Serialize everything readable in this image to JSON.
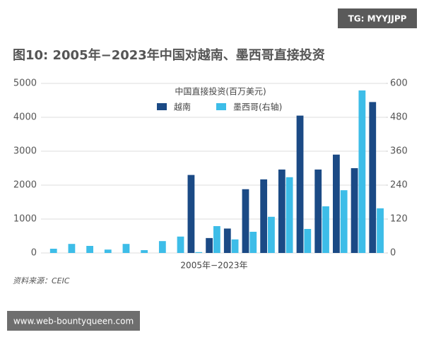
{
  "watermark": "TG: MYYJJPP",
  "footer_url": "www.web-bountyqueen.com",
  "chart_data": {
    "type": "bar",
    "title": "图10: 2005年−2023年中国对越南、墨西哥直接投资",
    "legend_title": "中国直接投资(百万美元)",
    "x_label": "2005年−2023年",
    "source": "资料来源：CEIC",
    "categories": [
      null,
      null,
      null,
      null,
      null,
      null,
      null,
      null,
      null,
      null,
      null,
      null,
      null,
      null,
      null,
      null,
      null,
      null,
      null
    ],
    "series": [
      {
        "name": "越南",
        "color": "#1b4a85",
        "values": [
          0,
          0,
          0,
          0,
          0,
          0,
          0,
          0,
          2300,
          440,
          720,
          1880,
          2170,
          2460,
          4050,
          2460,
          2900,
          2500,
          4450
        ]
      },
      {
        "name": "墨西哥(右轴)",
        "color": "#3dbde8",
        "axis": "y2",
        "values": [
          15,
          32,
          25,
          12,
          32,
          10,
          42,
          58,
          3,
          95,
          48,
          75,
          128,
          268,
          85,
          165,
          222,
          575,
          158
        ]
      }
    ],
    "ylim": [
      0,
      5000
    ],
    "yticks": [
      0,
      1000,
      2000,
      3000,
      4000,
      5000
    ],
    "y2lim": [
      0,
      600
    ],
    "y2ticks": [
      0,
      120,
      240,
      360,
      480,
      600
    ],
    "grid": true
  }
}
